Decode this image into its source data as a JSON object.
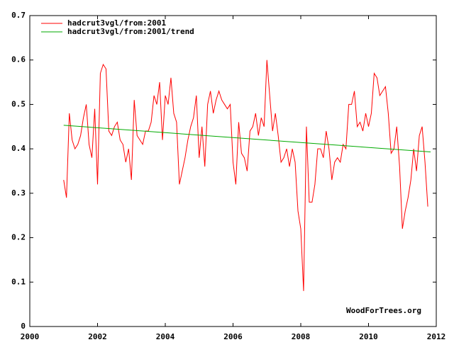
{
  "chart_data": {
    "type": "line",
    "annotation": "WoodForTrees.org",
    "legend": "top-left",
    "xlim": [
      2000,
      2012
    ],
    "xticks": [
      2000,
      2002,
      2004,
      2006,
      2008,
      2010,
      2012
    ],
    "ylim": [
      0,
      0.7
    ],
    "yticks": [
      0,
      0.1,
      0.2,
      0.3,
      0.4,
      0.5,
      0.6,
      0.7
    ],
    "series": [
      {
        "name": "hadcrut3vgl/from:2001",
        "color": "#ff0000",
        "x": [
          2001,
          2001.083,
          2001.167,
          2001.25,
          2001.333,
          2001.417,
          2001.5,
          2001.583,
          2001.667,
          2001.75,
          2001.833,
          2001.917,
          2002,
          2002.083,
          2002.167,
          2002.25,
          2002.333,
          2002.417,
          2002.5,
          2002.583,
          2002.667,
          2002.75,
          2002.833,
          2002.917,
          2003,
          2003.083,
          2003.167,
          2003.25,
          2003.333,
          2003.417,
          2003.5,
          2003.583,
          2003.667,
          2003.75,
          2003.833,
          2003.917,
          2004,
          2004.083,
          2004.167,
          2004.25,
          2004.333,
          2004.417,
          2004.5,
          2004.583,
          2004.667,
          2004.75,
          2004.833,
          2004.917,
          2005,
          2005.083,
          2005.167,
          2005.25,
          2005.333,
          2005.417,
          2005.5,
          2005.583,
          2005.667,
          2005.75,
          2005.833,
          2005.917,
          2006,
          2006.083,
          2006.167,
          2006.25,
          2006.333,
          2006.417,
          2006.5,
          2006.583,
          2006.667,
          2006.75,
          2006.833,
          2006.917,
          2007,
          2007.083,
          2007.167,
          2007.25,
          2007.333,
          2007.417,
          2007.5,
          2007.583,
          2007.667,
          2007.75,
          2007.833,
          2007.917,
          2008,
          2008.083,
          2008.167,
          2008.25,
          2008.333,
          2008.417,
          2008.5,
          2008.583,
          2008.667,
          2008.75,
          2008.833,
          2008.917,
          2009,
          2009.083,
          2009.167,
          2009.25,
          2009.333,
          2009.417,
          2009.5,
          2009.583,
          2009.667,
          2009.75,
          2009.833,
          2009.917,
          2010,
          2010.083,
          2010.167,
          2010.25,
          2010.333,
          2010.417,
          2010.5,
          2010.583,
          2010.667,
          2010.75,
          2010.833,
          2010.917,
          2011,
          2011.083,
          2011.167,
          2011.25,
          2011.333,
          2011.417,
          2011.5,
          2011.583,
          2011.667,
          2011.75
        ],
        "values": [
          0.33,
          0.29,
          0.48,
          0.42,
          0.4,
          0.41,
          0.43,
          0.47,
          0.5,
          0.41,
          0.38,
          0.49,
          0.32,
          0.57,
          0.59,
          0.58,
          0.44,
          0.43,
          0.45,
          0.46,
          0.42,
          0.41,
          0.37,
          0.4,
          0.33,
          0.51,
          0.43,
          0.42,
          0.41,
          0.44,
          0.44,
          0.46,
          0.52,
          0.5,
          0.55,
          0.42,
          0.52,
          0.5,
          0.56,
          0.48,
          0.46,
          0.32,
          0.35,
          0.38,
          0.42,
          0.45,
          0.47,
          0.52,
          0.38,
          0.45,
          0.36,
          0.5,
          0.53,
          0.48,
          0.51,
          0.53,
          0.51,
          0.5,
          0.49,
          0.5,
          0.37,
          0.32,
          0.46,
          0.39,
          0.38,
          0.35,
          0.44,
          0.45,
          0.48,
          0.43,
          0.47,
          0.45,
          0.6,
          0.52,
          0.44,
          0.48,
          0.43,
          0.37,
          0.38,
          0.4,
          0.36,
          0.4,
          0.37,
          0.26,
          0.22,
          0.08,
          0.45,
          0.28,
          0.28,
          0.32,
          0.4,
          0.4,
          0.38,
          0.44,
          0.4,
          0.33,
          0.37,
          0.38,
          0.37,
          0.41,
          0.4,
          0.5,
          0.5,
          0.53,
          0.45,
          0.46,
          0.44,
          0.48,
          0.45,
          0.48,
          0.57,
          0.56,
          0.52,
          0.53,
          0.54,
          0.48,
          0.39,
          0.4,
          0.45,
          0.36,
          0.22,
          0.26,
          0.29,
          0.33,
          0.4,
          0.35,
          0.43,
          0.45,
          0.37,
          0.27
        ]
      },
      {
        "name": "hadcrut3vgl/from:2001/trend",
        "color": "#00aa00",
        "x": [
          2001,
          2011.833
        ],
        "values": [
          0.453,
          0.393
        ]
      }
    ]
  }
}
